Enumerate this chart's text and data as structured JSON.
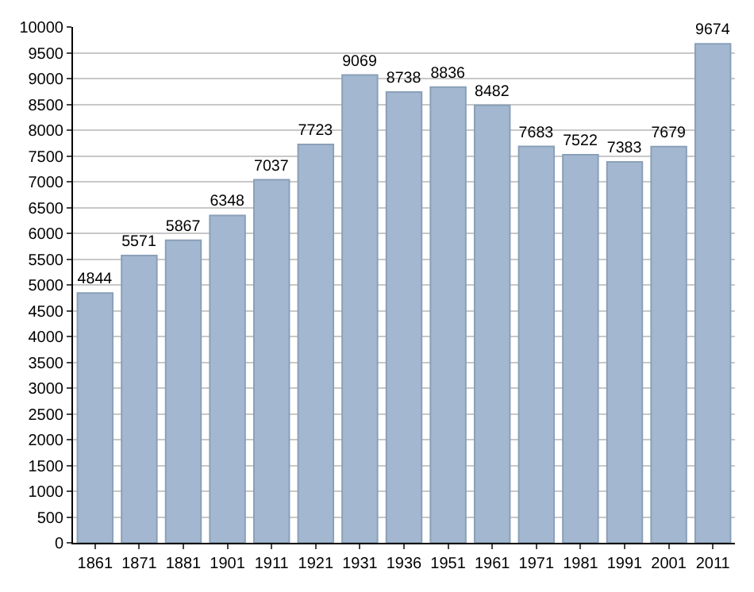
{
  "chart_data": {
    "type": "bar",
    "categories": [
      "1861",
      "1871",
      "1881",
      "1901",
      "1911",
      "1921",
      "1931",
      "1936",
      "1951",
      "1961",
      "1971",
      "1981",
      "1991",
      "2001",
      "2011"
    ],
    "values": [
      4844,
      5571,
      5867,
      6348,
      7037,
      7723,
      9069,
      8738,
      8836,
      8482,
      7683,
      7522,
      7383,
      7679,
      9674
    ],
    "color": "#a3b8d0",
    "ylim": [
      0,
      10000
    ],
    "yticks": [
      0,
      500,
      1000,
      1500,
      2000,
      2500,
      3000,
      3500,
      4000,
      4500,
      5000,
      5500,
      6000,
      6500,
      7000,
      7500,
      8000,
      8500,
      9000,
      9500,
      10000
    ],
    "grid": "y",
    "data_labels": true
  }
}
